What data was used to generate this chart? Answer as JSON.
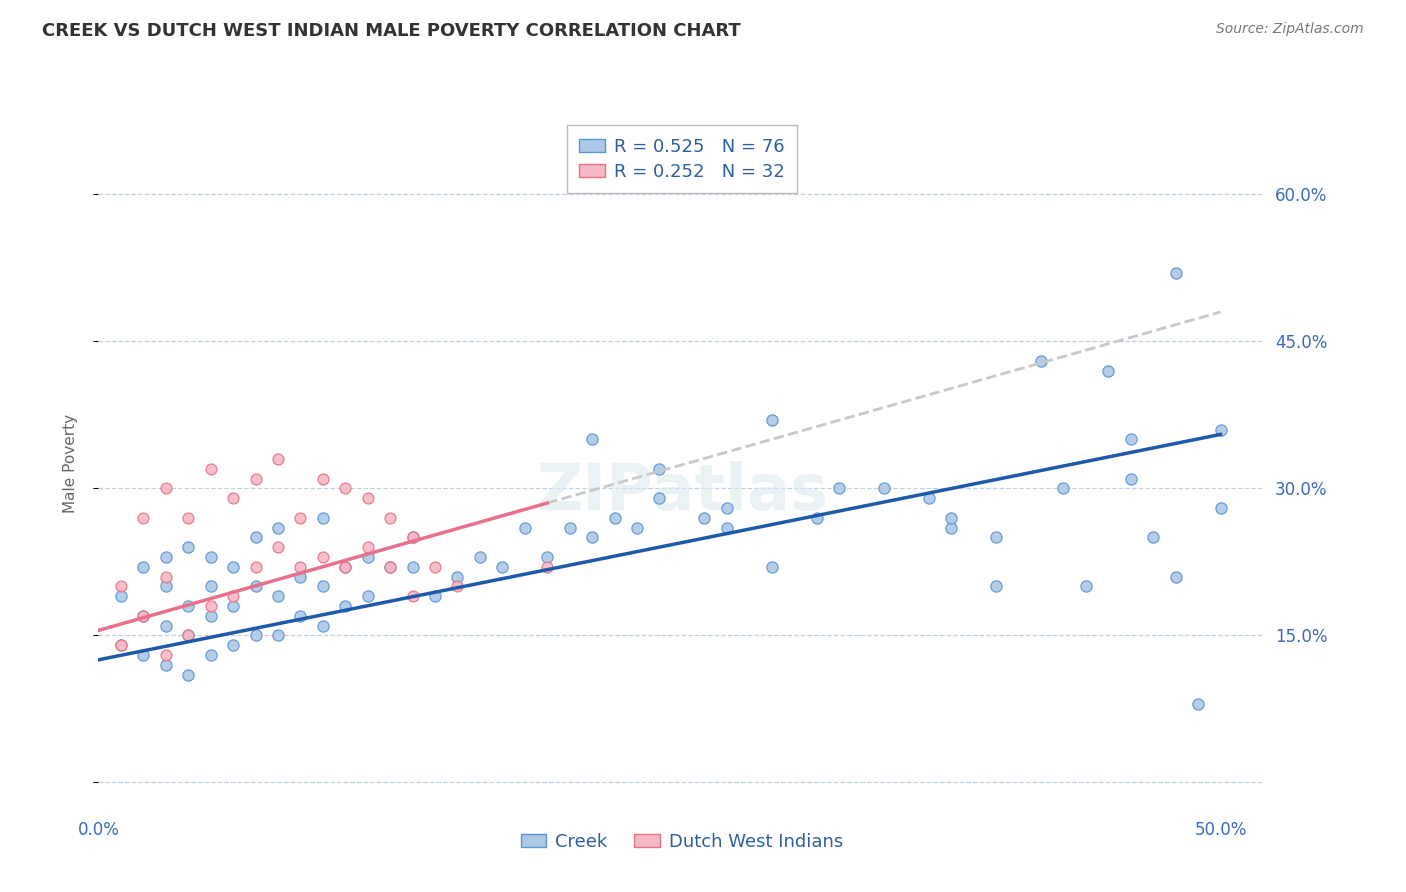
{
  "title": "CREEK VS DUTCH WEST INDIAN MALE POVERTY CORRELATION CHART",
  "source": "Source: ZipAtlas.com",
  "ylabel": "Male Poverty",
  "xlim": [
    0.0,
    0.52
  ],
  "ylim": [
    -0.03,
    0.68
  ],
  "ytick_positions": [
    0.0,
    0.15,
    0.3,
    0.45,
    0.6
  ],
  "right_ytick_labels": [
    "",
    "15.0%",
    "30.0%",
    "45.0%",
    "60.0%"
  ],
  "creek_color": "#adc8e6",
  "creek_edge_color": "#5b96d2",
  "dutch_color": "#f5b8c4",
  "dutch_edge_color": "#e8708a",
  "creek_line_color": "#1f5aaa",
  "dutch_line_color": "#e8708a",
  "dutch_ext_color": "#c8c8c8",
  "legend_creek_label": "R = 0.525   N = 76",
  "legend_dutch_label": "R = 0.252   N = 32",
  "background_color": "#ffffff",
  "grid_color": "#c0d0e8",
  "watermark": "ZIPatlas",
  "title_fontsize": 13,
  "axis_label_fontsize": 11,
  "tick_fontsize": 12,
  "legend_fontsize": 13,
  "creek_intercept": 0.125,
  "creek_slope": 0.46,
  "dutch_intercept": 0.155,
  "dutch_slope": 0.65,
  "creek_scatter_x": [
    0.01,
    0.01,
    0.02,
    0.02,
    0.02,
    0.03,
    0.03,
    0.03,
    0.03,
    0.04,
    0.04,
    0.04,
    0.04,
    0.05,
    0.05,
    0.05,
    0.05,
    0.06,
    0.06,
    0.06,
    0.07,
    0.07,
    0.07,
    0.08,
    0.08,
    0.08,
    0.09,
    0.09,
    0.1,
    0.1,
    0.1,
    0.11,
    0.11,
    0.12,
    0.12,
    0.13,
    0.14,
    0.14,
    0.15,
    0.16,
    0.17,
    0.18,
    0.19,
    0.2,
    0.21,
    0.22,
    0.23,
    0.24,
    0.25,
    0.27,
    0.28,
    0.3,
    0.32,
    0.33,
    0.35,
    0.37,
    0.38,
    0.4,
    0.38,
    0.4,
    0.43,
    0.45,
    0.46,
    0.47,
    0.49,
    0.5,
    0.42,
    0.44,
    0.46,
    0.48,
    0.3,
    0.22,
    0.25,
    0.28,
    0.5,
    0.48
  ],
  "creek_scatter_y": [
    0.14,
    0.19,
    0.13,
    0.17,
    0.22,
    0.12,
    0.16,
    0.2,
    0.23,
    0.11,
    0.15,
    0.18,
    0.24,
    0.13,
    0.17,
    0.2,
    0.23,
    0.14,
    0.18,
    0.22,
    0.15,
    0.2,
    0.25,
    0.15,
    0.19,
    0.26,
    0.17,
    0.21,
    0.16,
    0.2,
    0.27,
    0.18,
    0.22,
    0.19,
    0.23,
    0.22,
    0.22,
    0.25,
    0.19,
    0.21,
    0.23,
    0.22,
    0.26,
    0.23,
    0.26,
    0.25,
    0.27,
    0.26,
    0.29,
    0.27,
    0.28,
    0.22,
    0.27,
    0.3,
    0.3,
    0.29,
    0.26,
    0.2,
    0.27,
    0.25,
    0.3,
    0.42,
    0.31,
    0.25,
    0.08,
    0.28,
    0.43,
    0.2,
    0.35,
    0.21,
    0.37,
    0.35,
    0.32,
    0.26,
    0.36,
    0.52
  ],
  "dutch_scatter_x": [
    0.01,
    0.01,
    0.02,
    0.02,
    0.03,
    0.03,
    0.03,
    0.04,
    0.04,
    0.05,
    0.05,
    0.06,
    0.06,
    0.07,
    0.07,
    0.08,
    0.08,
    0.09,
    0.09,
    0.1,
    0.1,
    0.11,
    0.11,
    0.12,
    0.12,
    0.13,
    0.13,
    0.14,
    0.14,
    0.15,
    0.16,
    0.2
  ],
  "dutch_scatter_y": [
    0.14,
    0.2,
    0.17,
    0.27,
    0.13,
    0.21,
    0.3,
    0.15,
    0.27,
    0.18,
    0.32,
    0.19,
    0.29,
    0.22,
    0.31,
    0.24,
    0.33,
    0.22,
    0.27,
    0.23,
    0.31,
    0.22,
    0.3,
    0.24,
    0.29,
    0.22,
    0.27,
    0.19,
    0.25,
    0.22,
    0.2,
    0.22
  ]
}
